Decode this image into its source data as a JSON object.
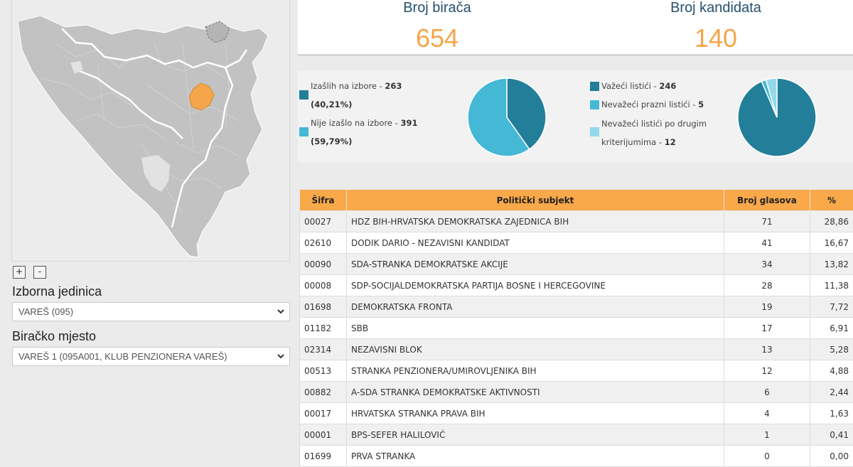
{
  "stats": {
    "voters": {
      "label": "Broj birača",
      "value": "654"
    },
    "candidates": {
      "label": "Broj kandidata",
      "value": "140"
    }
  },
  "turnout": {
    "items": [
      {
        "label": "Izašlih na izbore",
        "count": "263",
        "percent": "(40,21%)",
        "fraction": 0.4021,
        "color": "#227e99"
      },
      {
        "label": "Nije izašlo na izbore",
        "count": "391",
        "percent": "(59,79%)",
        "fraction": 0.5979,
        "color": "#45b8d6"
      }
    ]
  },
  "ballots": {
    "items": [
      {
        "label": "Važeći listići",
        "count": "246",
        "fraction": 0.9354,
        "color": "#227e99"
      },
      {
        "label": "Nevažeći prazni listići",
        "count": "5",
        "fraction": 0.019,
        "color": "#45b8d6"
      },
      {
        "label": "Nevažeći listići po drugim kriterijumima",
        "label_line1": "Nevažeći listići po drugim",
        "label_line2": "kriterijumima",
        "count": "12",
        "fraction": 0.0456,
        "color": "#93d9ea"
      }
    ]
  },
  "colors": {
    "accent": "#f5a54a",
    "header_bg": "#f9a84a",
    "title": "#26506f",
    "highlight_region": "#f5a54a"
  },
  "map": {
    "zoom_in": "+",
    "zoom_out": "-"
  },
  "unit_select": {
    "label": "Izborna jedinica",
    "value": "VAREŠ (095)",
    "icon": "chevron-down-icon"
  },
  "station_select": {
    "label": "Biračko mjesto",
    "value": "VAREŠ 1 (095A001, KLUB PENZIONERA VAREŠ)",
    "icon": "chevron-down-icon"
  },
  "table": {
    "headers": [
      "Šifra",
      "Politički subjekt",
      "Broj glasova",
      "%"
    ],
    "rows": [
      [
        "00027",
        "HDZ BIH-HRVATSKA DEMOKRATSKA ZAJEDNICA BIH",
        "71",
        "28,86"
      ],
      [
        "02610",
        "DODIK DARIO - NEZAVISNI KANDIDAT",
        "41",
        "16,67"
      ],
      [
        "00090",
        "SDA-STRANKA DEMOKRATSKE AKCIJE",
        "34",
        "13,82"
      ],
      [
        "00008",
        "SDP-SOCIJALDEMOKRATSKA PARTIJA BOSNE I HERCEGOVINE",
        "28",
        "11,38"
      ],
      [
        "01698",
        "DEMOKRATSKA FRONTA",
        "19",
        "7,72"
      ],
      [
        "01182",
        "SBB",
        "17",
        "6,91"
      ],
      [
        "02314",
        "NEZAVISNI BLOK",
        "13",
        "5,28"
      ],
      [
        "00513",
        "STRANKA PENZIONERA/UMIROVLJENIKA BIH",
        "12",
        "4,88"
      ],
      [
        "00882",
        "A-SDA STRANKA DEMOKRATSKE AKTIVNOSTI",
        "6",
        "2,44"
      ],
      [
        "00017",
        "HRVATSKA STRANKA PRAVA BIH",
        "4",
        "1,63"
      ],
      [
        "00001",
        "BPS-SEFER HALILOVIĆ",
        "1",
        "0,41"
      ],
      [
        "01699",
        "PRVA STRANKA",
        "0",
        "0,00"
      ]
    ]
  }
}
